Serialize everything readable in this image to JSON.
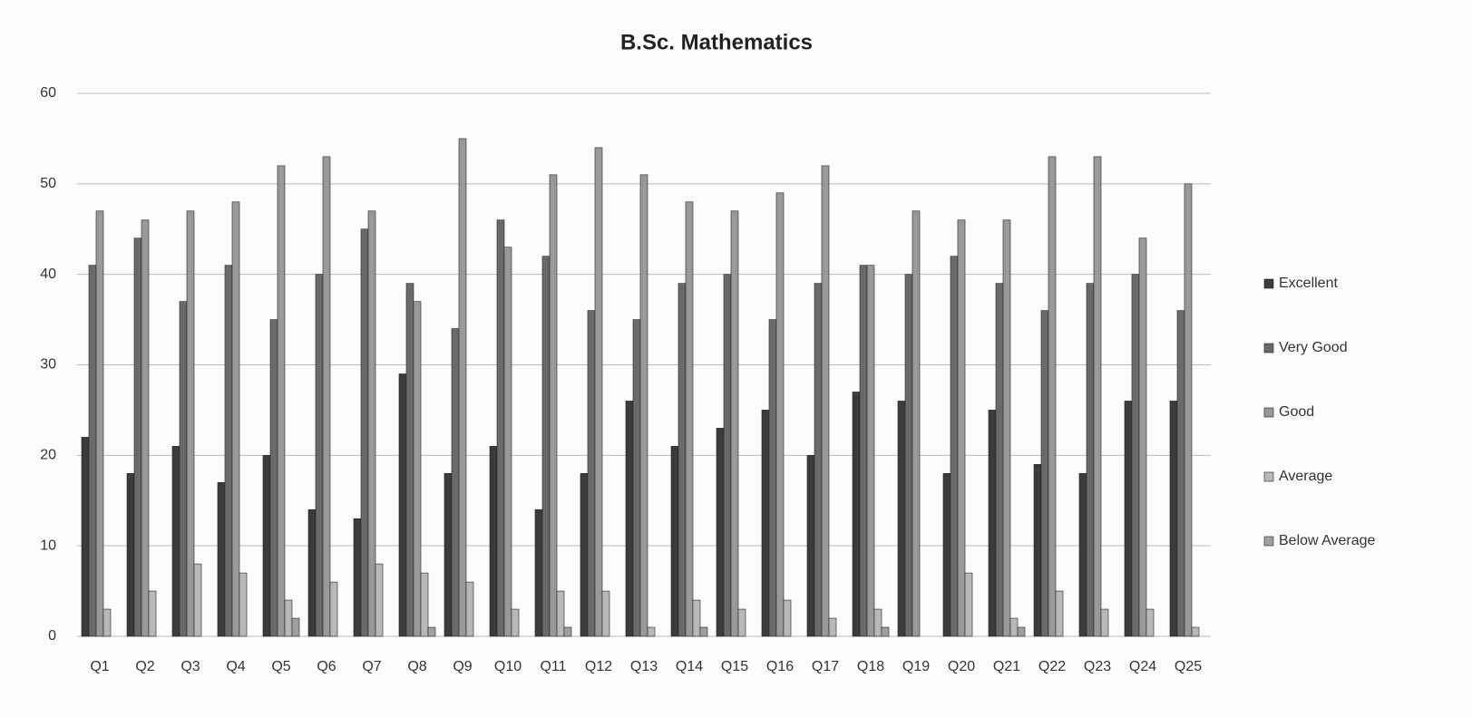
{
  "chart_data": {
    "type": "bar",
    "title": "B.Sc. Mathematics",
    "categories": [
      "Q1",
      "Q2",
      "Q3",
      "Q4",
      "Q5",
      "Q6",
      "Q7",
      "Q8",
      "Q9",
      "Q10",
      "Q11",
      "Q12",
      "Q13",
      "Q14",
      "Q15",
      "Q16",
      "Q17",
      "Q18",
      "Q19",
      "Q20",
      "Q21",
      "Q22",
      "Q23",
      "Q24",
      "Q25"
    ],
    "series": [
      {
        "name": "Excellent",
        "color": "#3c3c3c",
        "values": [
          22,
          18,
          21,
          17,
          20,
          14,
          13,
          29,
          18,
          21,
          14,
          18,
          26,
          21,
          23,
          25,
          20,
          27,
          26,
          18,
          25,
          19,
          18,
          26,
          26
        ]
      },
      {
        "name": "Very Good",
        "color": "#6a6a6a",
        "values": [
          41,
          44,
          37,
          41,
          35,
          40,
          45,
          39,
          34,
          46,
          42,
          36,
          35,
          39,
          40,
          35,
          39,
          41,
          40,
          42,
          39,
          36,
          39,
          40,
          36
        ]
      },
      {
        "name": "Good",
        "color": "#999999",
        "values": [
          47,
          46,
          47,
          48,
          52,
          53,
          47,
          37,
          55,
          43,
          51,
          54,
          51,
          48,
          47,
          49,
          52,
          41,
          47,
          46,
          46,
          53,
          53,
          44,
          50
        ]
      },
      {
        "name": "Average",
        "color": "#b8b8b8",
        "values": [
          3,
          5,
          8,
          7,
          4,
          6,
          8,
          7,
          6,
          3,
          5,
          5,
          1,
          4,
          3,
          4,
          2,
          3,
          0,
          7,
          2,
          5,
          3,
          3,
          1
        ]
      },
      {
        "name": "Below Average",
        "color": "#a0a0a0",
        "values": [
          0,
          0,
          0,
          0,
          2,
          0,
          0,
          1,
          0,
          0,
          1,
          0,
          0,
          1,
          0,
          0,
          0,
          1,
          0,
          0,
          1,
          0,
          0,
          0,
          0
        ]
      }
    ],
    "ylim": [
      0,
      60
    ],
    "yticks": [
      0,
      10,
      20,
      30,
      40,
      50,
      60
    ],
    "grid": true,
    "legend": "right"
  }
}
